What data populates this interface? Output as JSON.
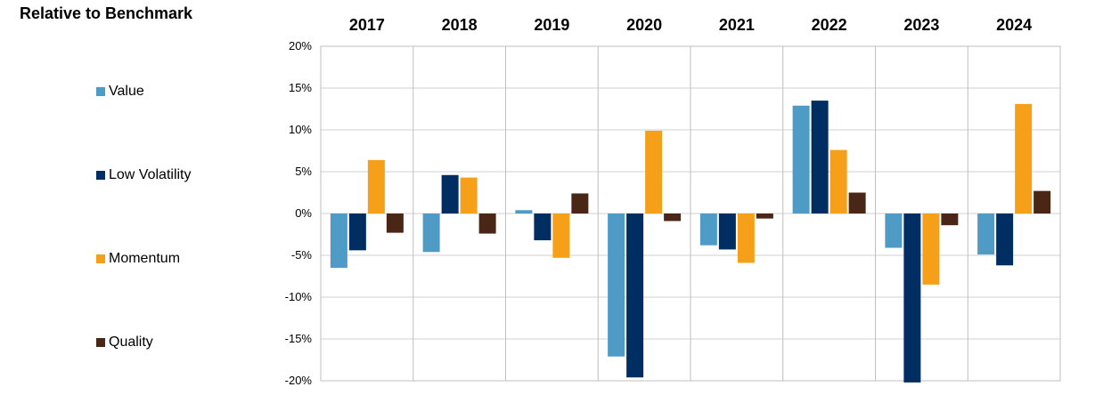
{
  "title": "Relative to Benchmark",
  "chart_data": {
    "type": "bar",
    "title": "Relative to Benchmark",
    "categories": [
      "2017",
      "2018",
      "2019",
      "2020",
      "2021",
      "2022",
      "2023",
      "2024"
    ],
    "series": [
      {
        "name": "Value",
        "color": "#4e9cc6",
        "values": [
          -6.5,
          -4.6,
          0.4,
          -17.1,
          -3.8,
          12.9,
          -4.1,
          -4.9
        ]
      },
      {
        "name": "Low Volatility",
        "color": "#002d62",
        "values": [
          -4.4,
          4.6,
          -3.2,
          -19.6,
          -4.3,
          13.5,
          -20.2,
          -6.2
        ]
      },
      {
        "name": "Momentum",
        "color": "#f6a01a",
        "values": [
          6.4,
          4.3,
          -5.3,
          9.9,
          -5.9,
          7.6,
          -8.5,
          13.1
        ]
      },
      {
        "name": "Quality",
        "color": "#4a2616",
        "values": [
          -2.3,
          -2.4,
          2.4,
          -0.9,
          -0.6,
          2.5,
          -1.4,
          2.7
        ]
      }
    ],
    "ylim": [
      -20,
      20
    ],
    "yticks": [
      20,
      15,
      10,
      5,
      0,
      -5,
      -10,
      -15,
      -20
    ],
    "ytick_labels": [
      "20%",
      "15%",
      "10%",
      "5%",
      "0%",
      "-5%",
      "-10%",
      "-15%",
      "-20%"
    ],
    "grid": true,
    "legend_position": "left"
  }
}
